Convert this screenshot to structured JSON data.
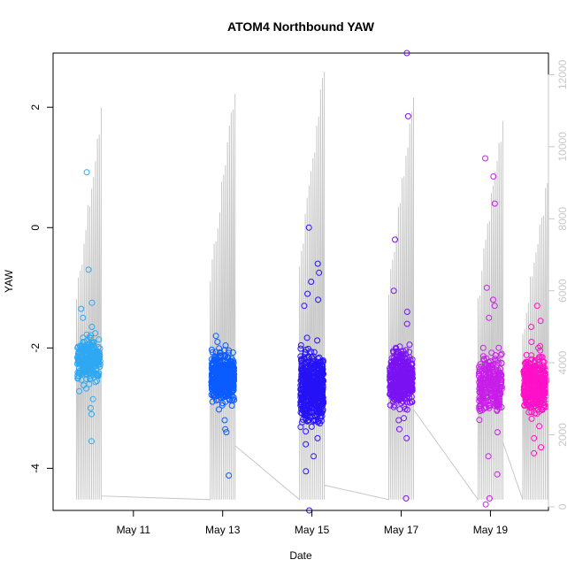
{
  "chart_data": {
    "type": "scatter",
    "title": "ATOM4 Northbound YAW",
    "xlabel": "Date",
    "ylabel": "YAW",
    "x_ticks": [
      "May 11",
      "May 13",
      "May 15",
      "May 17",
      "May 19"
    ],
    "y_ticks": [
      -4,
      -2,
      0,
      2
    ],
    "y_right_ticks": [
      0,
      2000,
      4000,
      6000,
      8000,
      10000,
      12000
    ],
    "xlim_days": [
      9.2,
      20.3
    ],
    "ylim": [
      -4.7,
      2.9
    ],
    "y_right_lim": [
      -100,
      12600
    ],
    "grid": false,
    "secondary_series_color": "#c8c8c8",
    "series": [
      {
        "date": "May 10",
        "color": "#2fa8f2",
        "center": -2.2,
        "spread": 0.18,
        "n": 260,
        "outliers": [
          0.92,
          -0.7,
          -1.25,
          -1.35,
          -1.5,
          -1.65,
          -2.85,
          -3.0,
          -3.1,
          -3.55
        ]
      },
      {
        "date": "May 13",
        "color": "#0a5cff",
        "center": -2.5,
        "spread": 0.2,
        "n": 420,
        "outliers": [
          -4.12,
          -3.4,
          -3.35,
          -3.2,
          -1.8,
          -1.9
        ]
      },
      {
        "date": "May 15",
        "color": "#2612f5",
        "center": -2.65,
        "spread": 0.28,
        "n": 520,
        "outliers": [
          0.0,
          -0.6,
          -0.75,
          -0.9,
          -1.1,
          -1.2,
          -1.3,
          -4.05,
          -4.7,
          -3.8,
          -3.6,
          -3.5
        ]
      },
      {
        "date": "May 17",
        "color": "#7a12f2",
        "center": -2.5,
        "spread": 0.22,
        "n": 420,
        "outliers": [
          2.9,
          1.85,
          -0.2,
          -1.05,
          -1.4,
          -1.6,
          -3.2,
          -3.35,
          -3.5,
          -4.5
        ]
      },
      {
        "date": "May 19",
        "color": "#c81ee8",
        "center": -2.6,
        "spread": 0.22,
        "n": 260,
        "outliers": [
          1.15,
          0.85,
          0.4,
          -1.0,
          -1.2,
          -1.3,
          -1.5,
          -2.0,
          -3.4,
          -3.8,
          -4.1,
          -4.5,
          -4.6
        ]
      },
      {
        "date": "May 20",
        "color": "#ff10c8",
        "center": -2.6,
        "spread": 0.22,
        "n": 380,
        "outliers": [
          -1.3,
          -1.55,
          -1.65,
          -1.9,
          -3.3,
          -3.5,
          -3.65,
          -3.75
        ]
      }
    ]
  }
}
